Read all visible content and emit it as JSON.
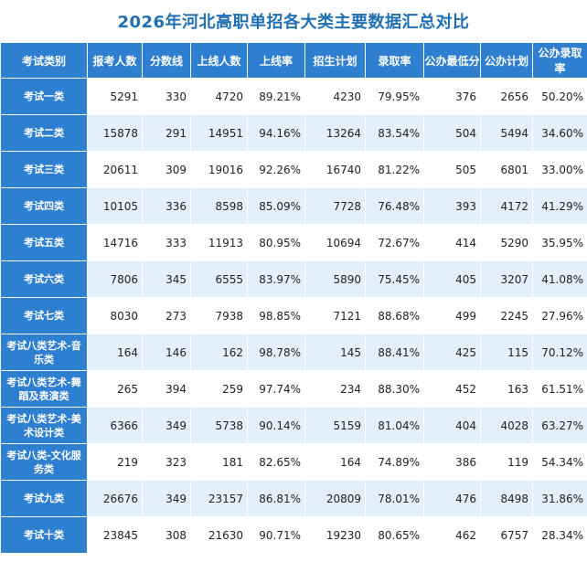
{
  "title": "2026年河北高职单招各大类主要数据汇总对比",
  "headers": [
    "考试类别",
    "报考人数",
    "分数线",
    "上线人数",
    "上线率",
    "招生计划",
    "录取率",
    "公办最低分",
    "公办计划",
    "公办录取率"
  ],
  "rows": [
    [
      "考试一类",
      "5291",
      "330",
      "4720",
      "89.21%",
      "4230",
      "79.95%",
      "376",
      "2656",
      "50.20%"
    ],
    [
      "考试二类",
      "15878",
      "291",
      "14951",
      "94.16%",
      "13264",
      "83.54%",
      "504",
      "5494",
      "34.60%"
    ],
    [
      "考试三类",
      "20611",
      "309",
      "19016",
      "92.26%",
      "16740",
      "81.22%",
      "505",
      "6801",
      "33.00%"
    ],
    [
      "考试四类",
      "10105",
      "336",
      "8598",
      "85.09%",
      "7728",
      "76.48%",
      "393",
      "4172",
      "41.29%"
    ],
    [
      "考试五类",
      "14716",
      "333",
      "11913",
      "80.95%",
      "10694",
      "72.67%",
      "414",
      "5290",
      "35.95%"
    ],
    [
      "考试六类",
      "7806",
      "345",
      "6555",
      "83.97%",
      "5890",
      "75.45%",
      "405",
      "3207",
      "41.08%"
    ],
    [
      "考试七类",
      "8030",
      "273",
      "7938",
      "98.85%",
      "7121",
      "88.68%",
      "499",
      "2245",
      "27.96%"
    ],
    [
      "考试八类艺术-音乐类",
      "164",
      "146",
      "162",
      "98.78%",
      "145",
      "88.41%",
      "425",
      "115",
      "70.12%"
    ],
    [
      "考试八类艺术-舞蹈及表演类",
      "265",
      "394",
      "259",
      "97.74%",
      "234",
      "88.30%",
      "452",
      "163",
      "61.51%"
    ],
    [
      "考试八类艺术-美术设计类",
      "6366",
      "349",
      "5738",
      "90.14%",
      "5159",
      "81.04%",
      "404",
      "4028",
      "63.27%"
    ],
    [
      "考试八类-文化服务类",
      "219",
      "323",
      "181",
      "82.65%",
      "164",
      "74.89%",
      "386",
      "119",
      "54.34%"
    ],
    [
      "考试九类",
      "26676",
      "349",
      "23157",
      "86.81%",
      "20809",
      "78.01%",
      "476",
      "8498",
      "31.86%"
    ],
    [
      "考试十类",
      "23845",
      "308",
      "21630",
      "90.71%",
      "19230",
      "80.65%",
      "462",
      "6757",
      "28.34%"
    ]
  ]
}
